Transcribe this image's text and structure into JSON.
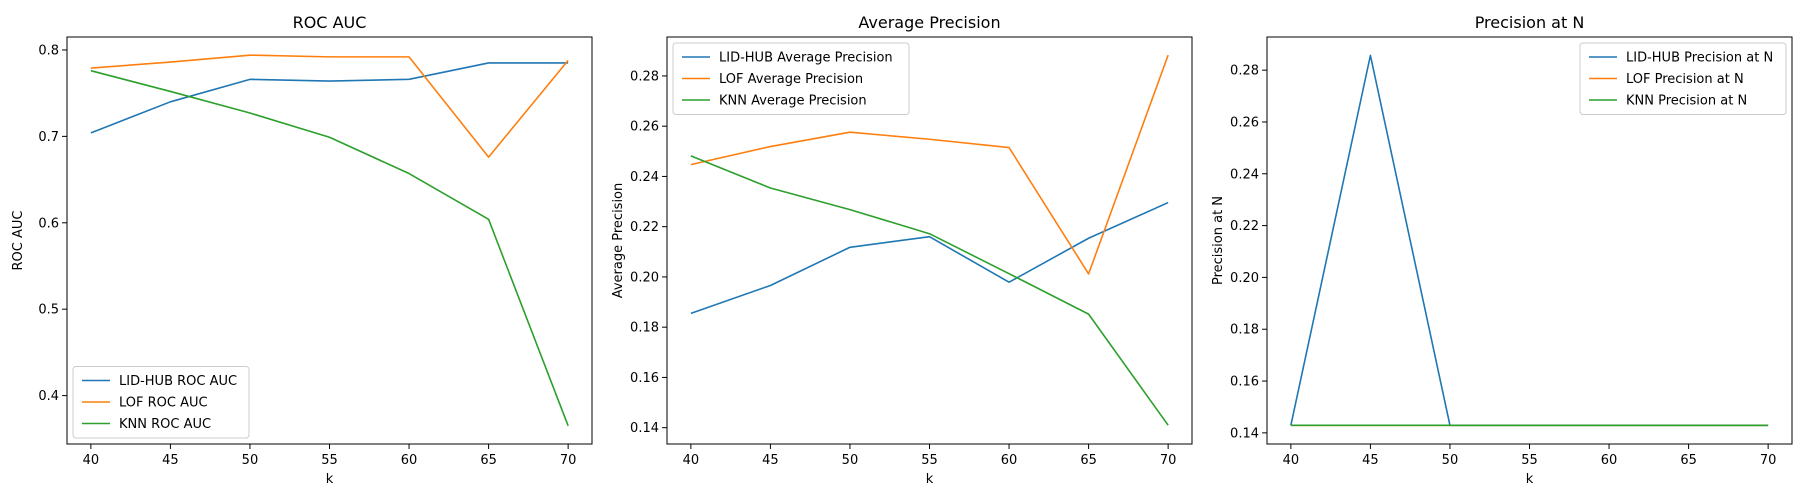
{
  "colors": {
    "LID-HUB": "#1f77b4",
    "LOF": "#ff7f0e",
    "KNN": "#2ca02c"
  },
  "chart_data": [
    {
      "type": "line",
      "title": "ROC AUC",
      "xlabel": "k",
      "ylabel": "ROC AUC",
      "x": [
        40,
        45,
        50,
        55,
        60,
        65,
        70
      ],
      "xticks": [
        "40",
        "45",
        "50",
        "55",
        "60",
        "65",
        "70"
      ],
      "yticks": [
        "0.4",
        "0.5",
        "0.6",
        "0.7",
        "0.8"
      ],
      "xlim": [
        38.5,
        71.5
      ],
      "ylim": [
        0.344,
        0.815
      ],
      "legend_position": "lower-left",
      "grid": false,
      "series": [
        {
          "name": "LID-HUB ROC AUC",
          "color_key": "LID-HUB",
          "values": [
            0.704,
            0.74,
            0.766,
            0.764,
            0.766,
            0.785,
            0.785
          ]
        },
        {
          "name": "LOF ROC AUC",
          "color_key": "LOF",
          "values": [
            0.779,
            0.786,
            0.794,
            0.792,
            0.792,
            0.676,
            0.788
          ]
        },
        {
          "name": "KNN ROC AUC",
          "color_key": "KNN",
          "values": [
            0.776,
            0.752,
            0.727,
            0.699,
            0.657,
            0.604,
            0.365
          ]
        }
      ]
    },
    {
      "type": "line",
      "title": "Average Precision",
      "xlabel": "k",
      "ylabel": "Average Precision",
      "x": [
        40,
        45,
        50,
        55,
        60,
        65,
        70
      ],
      "xticks": [
        "40",
        "45",
        "50",
        "55",
        "60",
        "65",
        "70"
      ],
      "yticks": [
        "0.14",
        "0.16",
        "0.18",
        "0.20",
        "0.22",
        "0.24",
        "0.26",
        "0.28"
      ],
      "xlim": [
        38.5,
        71.5
      ],
      "ylim": [
        0.1335,
        0.2955
      ],
      "legend_position": "upper-left",
      "grid": false,
      "series": [
        {
          "name": "LID-HUB Average Precision",
          "color_key": "LID-HUB",
          "values": [
            0.1855,
            0.1966,
            0.2118,
            0.216,
            0.1979,
            0.2154,
            0.2296
          ]
        },
        {
          "name": "LOF Average Precision",
          "color_key": "LOF",
          "values": [
            0.2447,
            0.2519,
            0.2576,
            0.2548,
            0.2515,
            0.2012,
            0.2883
          ]
        },
        {
          "name": "KNN Average Precision",
          "color_key": "KNN",
          "values": [
            0.2482,
            0.2354,
            0.2268,
            0.2172,
            0.2013,
            0.1852,
            0.141
          ]
        }
      ]
    },
    {
      "type": "line",
      "title": "Precision at N",
      "xlabel": "k",
      "ylabel": "Precision at N",
      "x": [
        40,
        45,
        50,
        55,
        60,
        65,
        70
      ],
      "xticks": [
        "40",
        "45",
        "50",
        "55",
        "60",
        "65",
        "70"
      ],
      "yticks": [
        "0.14",
        "0.16",
        "0.18",
        "0.20",
        "0.22",
        "0.24",
        "0.26",
        "0.28"
      ],
      "xlim": [
        38.5,
        71.5
      ],
      "ylim": [
        0.1357,
        0.2928
      ],
      "legend_position": "upper-right",
      "grid": false,
      "series": [
        {
          "name": "LID-HUB Precision at N",
          "color_key": "LID-HUB",
          "values": [
            0.1429,
            0.2857,
            0.1429,
            0.1429,
            0.1429,
            0.1429,
            0.1429
          ]
        },
        {
          "name": "LOF Precision at N",
          "color_key": "LOF",
          "values": [
            0.1429,
            0.1429,
            0.1429,
            0.1429,
            0.1429,
            0.1429,
            0.1429
          ]
        },
        {
          "name": "KNN Precision at N",
          "color_key": "KNN",
          "values": [
            0.1429,
            0.1429,
            0.1429,
            0.1429,
            0.1429,
            0.1429,
            0.1429
          ]
        }
      ]
    }
  ]
}
